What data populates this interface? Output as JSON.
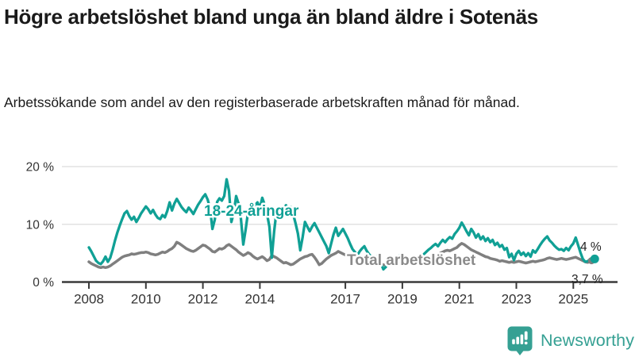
{
  "header": {
    "title": "Högre arbetslöshet bland unga än bland äldre i Sotenäs",
    "subtitle": "Arbetssökande som andel av den registerbaserade arbetskraften månad för månad."
  },
  "chart_data": {
    "type": "line",
    "unit": "%",
    "frequency": "monthly",
    "x_start": "2008-01",
    "x_end": "2025-10",
    "ylim": [
      0,
      20
    ],
    "grid": "horizontal-only",
    "yticks": [
      {
        "value": 0,
        "label": "0 %"
      },
      {
        "value": 10,
        "label": "10 %"
      },
      {
        "value": 20,
        "label": "20 %"
      }
    ],
    "xticks": [
      {
        "year": 2008,
        "label": "2008"
      },
      {
        "year": 2010,
        "label": "2010"
      },
      {
        "year": 2012,
        "label": "2012"
      },
      {
        "year": 2014,
        "label": "2014"
      },
      {
        "year": 2017,
        "label": "2017"
      },
      {
        "year": 2019,
        "label": "2019"
      },
      {
        "year": 2021,
        "label": "2021"
      },
      {
        "year": 2023,
        "label": "2023"
      },
      {
        "year": 2025,
        "label": "2025"
      }
    ],
    "colors": {
      "youth": "#10a095",
      "total": "#7f7f7f",
      "total_label": "#8a8a8a",
      "end_label": "#222222",
      "grid": "#dcdcdc",
      "axis": "#3a3a3a",
      "tick_text": "#333333"
    },
    "series": [
      {
        "name": "Total arbetslöshet",
        "end_label": "3,7 %",
        "values": [
          3.5,
          3.2,
          3.0,
          2.8,
          2.6,
          2.5,
          2.6,
          2.5,
          2.6,
          2.8,
          3.1,
          3.4,
          3.7,
          4.0,
          4.3,
          4.5,
          4.6,
          4.7,
          4.9,
          4.8,
          4.9,
          5.0,
          5.1,
          5.1,
          5.2,
          5.1,
          4.9,
          4.8,
          4.7,
          4.8,
          5.0,
          5.2,
          5.1,
          5.3,
          5.6,
          5.8,
          6.2,
          6.9,
          6.7,
          6.4,
          6.1,
          5.8,
          5.6,
          5.4,
          5.3,
          5.5,
          5.8,
          6.1,
          6.4,
          6.3,
          6.0,
          5.7,
          5.3,
          5.2,
          5.5,
          5.8,
          5.7,
          5.9,
          6.3,
          6.5,
          6.2,
          5.9,
          5.6,
          5.2,
          4.9,
          4.6,
          4.8,
          5.1,
          4.9,
          4.5,
          4.2,
          4.0,
          4.2,
          4.4,
          4.1,
          3.7,
          3.9,
          4.6,
          4.4,
          4.2,
          3.9,
          3.6,
          3.3,
          3.4,
          3.2,
          3.0,
          3.1,
          3.4,
          3.7,
          4.0,
          4.2,
          4.4,
          4.5,
          4.7,
          4.8,
          4.3,
          3.7,
          3.0,
          3.2,
          3.6,
          4.0,
          4.3,
          4.6,
          4.8,
          5.0,
          5.3,
          5.1,
          4.9,
          4.7,
          4.5,
          4.3,
          4.1,
          3.9,
          3.8,
          4.0,
          4.2,
          4.1,
          3.9,
          3.7,
          3.6,
          3.5,
          3.4,
          3.2,
          3.1,
          3.0,
          2.9,
          3.1,
          3.3,
          3.2,
          3.1,
          3.2,
          3.3,
          3.4,
          3.5,
          3.4,
          3.3,
          3.2,
          3.3,
          3.5,
          3.6,
          3.5,
          3.6,
          3.7,
          3.8,
          4.0,
          4.2,
          4.5,
          4.8,
          5.0,
          5.2,
          5.4,
          5.5,
          5.4,
          5.6,
          5.8,
          6.0,
          6.4,
          6.7,
          6.5,
          6.2,
          5.9,
          5.6,
          5.4,
          5.2,
          5.0,
          4.8,
          4.6,
          4.4,
          4.3,
          4.1,
          4.0,
          3.9,
          3.8,
          3.6,
          3.7,
          3.6,
          3.5,
          3.4,
          3.5,
          3.4,
          3.5,
          3.6,
          3.5,
          3.4,
          3.3,
          3.4,
          3.5,
          3.6,
          3.5,
          3.6,
          3.7,
          3.8,
          3.9,
          4.1,
          4.2,
          4.1,
          4.0,
          3.9,
          4.0,
          4.1,
          4.0,
          3.9,
          4.0,
          4.1,
          4.2,
          4.3,
          4.1,
          3.9,
          3.7,
          3.5,
          3.4,
          3.5,
          3.6,
          3.7
        ]
      },
      {
        "name": "18-24-åringar",
        "end_label": "4 %",
        "values": [
          6.0,
          5.3,
          4.5,
          3.7,
          3.3,
          3.1,
          3.6,
          4.4,
          3.5,
          4.2,
          5.6,
          7.2,
          8.6,
          9.8,
          10.9,
          11.9,
          12.3,
          11.4,
          10.8,
          11.3,
          10.4,
          11.1,
          11.9,
          12.5,
          13.1,
          12.6,
          11.9,
          12.5,
          11.7,
          11.1,
          10.9,
          11.6,
          11.2,
          12.3,
          13.8,
          12.4,
          13.6,
          14.4,
          13.7,
          13.0,
          12.5,
          12.1,
          12.9,
          12.4,
          11.8,
          12.6,
          13.4,
          14.0,
          14.7,
          15.2,
          14.3,
          12.8,
          9.2,
          10.8,
          13.9,
          14.5,
          14.1,
          14.9,
          17.8,
          15.8,
          10.4,
          12.0,
          14.9,
          13.6,
          11.0,
          6.5,
          9.0,
          12.0,
          12.8,
          12.2,
          13.3,
          13.8,
          12.8,
          14.6,
          13.4,
          11.8,
          9.6,
          4.2,
          8.8,
          12.2,
          12.6,
          11.6,
          12.7,
          13.3,
          12.4,
          13.0,
          11.8,
          10.2,
          8.4,
          5.5,
          7.8,
          10.4,
          9.6,
          8.8,
          9.6,
          10.2,
          9.4,
          8.6,
          7.8,
          7.0,
          6.2,
          5.0,
          6.6,
          8.2,
          9.4,
          8.0,
          8.6,
          9.2,
          8.4,
          7.6,
          6.6,
          5.7,
          5.2,
          4.6,
          5.3,
          5.8,
          6.2,
          5.4,
          4.8,
          4.4,
          4.0,
          4.4,
          3.8,
          3.2,
          2.2,
          2.6,
          3.4,
          3.8,
          4.2,
          3.9,
          4.3,
          4.6,
          4.2,
          4.5,
          4.0,
          3.6,
          3.3,
          3.7,
          4.2,
          4.6,
          4.4,
          4.8,
          5.2,
          5.6,
          5.9,
          6.3,
          6.6,
          6.2,
          6.8,
          7.3,
          6.9,
          7.4,
          7.8,
          7.5,
          8.3,
          8.8,
          9.4,
          10.3,
          9.6,
          8.8,
          8.1,
          9.2,
          8.6,
          7.7,
          8.3,
          7.4,
          7.9,
          7.1,
          7.6,
          6.9,
          7.3,
          6.4,
          6.8,
          6.1,
          6.4,
          5.6,
          5.9,
          4.3,
          4.9,
          3.8,
          4.9,
          5.4,
          4.7,
          5.1,
          4.5,
          5.0,
          4.4,
          5.5,
          5.1,
          5.7,
          6.4,
          7.0,
          7.5,
          7.9,
          7.2,
          6.8,
          6.3,
          5.9,
          5.6,
          5.7,
          5.4,
          5.9,
          5.5,
          6.2,
          6.7,
          7.7,
          6.4,
          5.1,
          4.0,
          3.5,
          3.6,
          3.9,
          4.2,
          4.0
        ]
      }
    ]
  },
  "footer": {
    "brand": "Newsworthy"
  }
}
